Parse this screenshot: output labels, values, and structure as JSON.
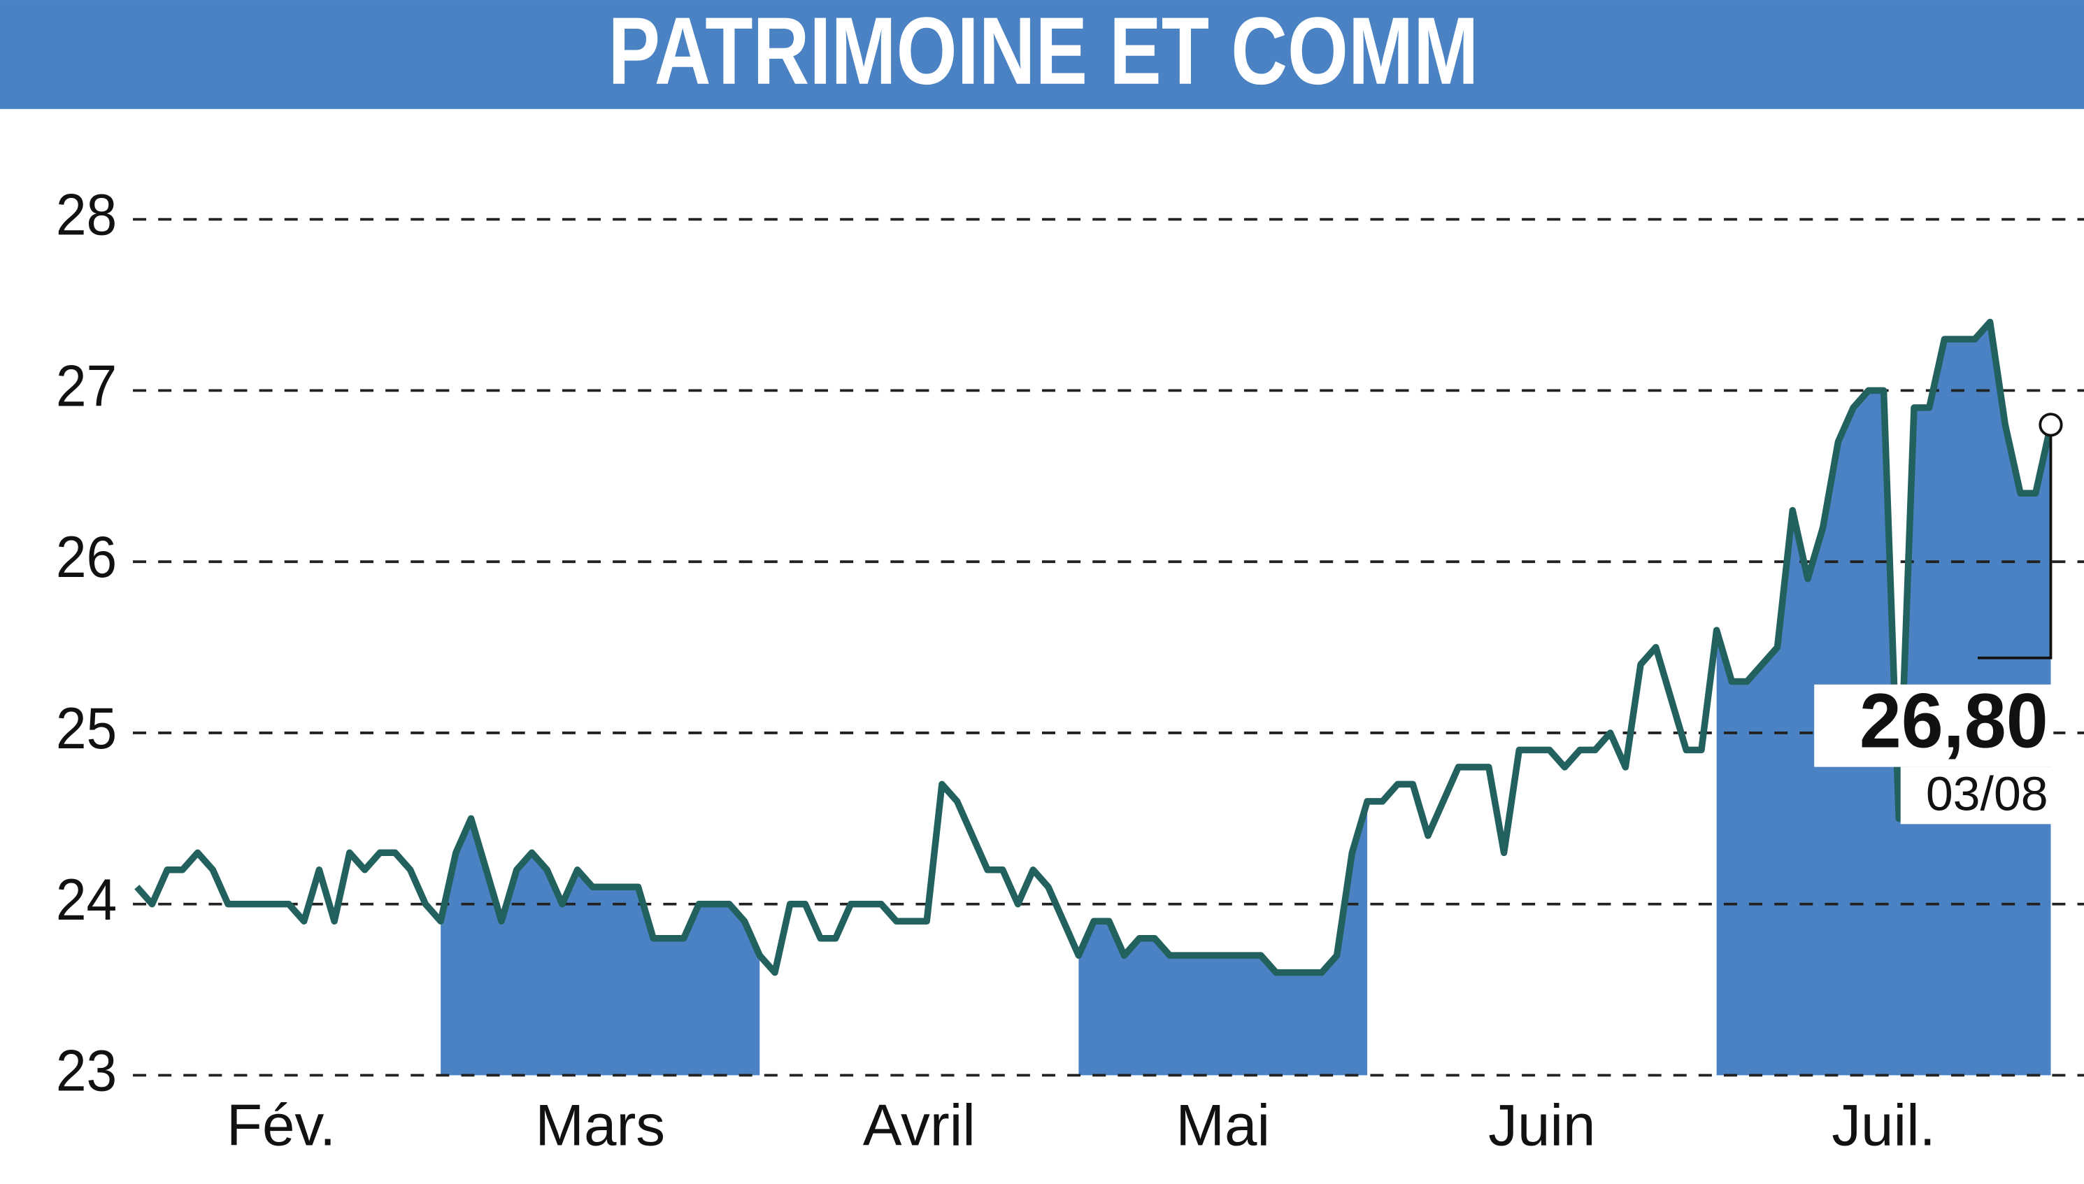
{
  "chart_data": {
    "type": "line",
    "title": "PATRIMOINE ET COMM",
    "months": [
      {
        "label": "Fév.",
        "values": [
          24.1,
          24.0,
          24.2,
          24.2,
          24.3,
          24.2,
          24.0,
          24.0,
          24.0,
          24.0,
          24.0,
          23.9,
          24.2,
          23.9,
          24.3,
          24.2,
          24.3,
          24.3,
          24.2,
          24.0
        ]
      },
      {
        "label": "Mars",
        "values": [
          23.9,
          24.3,
          24.5,
          24.2,
          23.9,
          24.2,
          24.3,
          24.2,
          24.0,
          24.2,
          24.1,
          24.1,
          24.1,
          24.1,
          23.8,
          23.8,
          23.8,
          24.0,
          24.0,
          24.0,
          23.9,
          23.7
        ]
      },
      {
        "label": "Avril",
        "values": [
          23.6,
          24.0,
          24.0,
          23.8,
          23.8,
          24.0,
          24.0,
          24.0,
          23.9,
          23.9,
          23.9,
          24.7,
          24.6,
          24.4,
          24.2,
          24.2,
          24.0,
          24.2,
          24.1,
          23.9
        ]
      },
      {
        "label": "Mai",
        "values": [
          23.7,
          23.9,
          23.9,
          23.7,
          23.8,
          23.8,
          23.7,
          23.7,
          23.7,
          23.7,
          23.7,
          23.7,
          23.7,
          23.6,
          23.6,
          23.6,
          23.6,
          23.7,
          24.3,
          24.6
        ]
      },
      {
        "label": "Juin",
        "values": [
          24.6,
          24.7,
          24.7,
          24.4,
          24.6,
          24.8,
          24.8,
          24.8,
          24.3,
          24.9,
          24.9,
          24.9,
          24.8,
          24.9,
          24.9,
          25.0,
          24.8,
          25.4,
          25.5,
          25.2,
          24.9,
          24.9
        ]
      },
      {
        "label": "Juil.",
        "values": [
          25.6,
          25.3,
          25.3,
          25.4,
          25.5,
          26.3,
          25.9,
          26.2,
          26.7,
          26.9,
          27.0,
          27.0,
          24.5,
          26.9,
          26.9,
          27.3,
          27.3,
          27.3,
          27.4,
          26.8,
          26.4,
          26.4,
          26.8
        ]
      }
    ],
    "line_color": "#23615f",
    "fill_color": "#4a82c3",
    "ylim": [
      23,
      28
    ],
    "yticks": [
      23,
      24,
      25,
      26,
      27,
      28
    ],
    "grid": true,
    "end_label": "26,80",
    "end_date": "03/08"
  }
}
